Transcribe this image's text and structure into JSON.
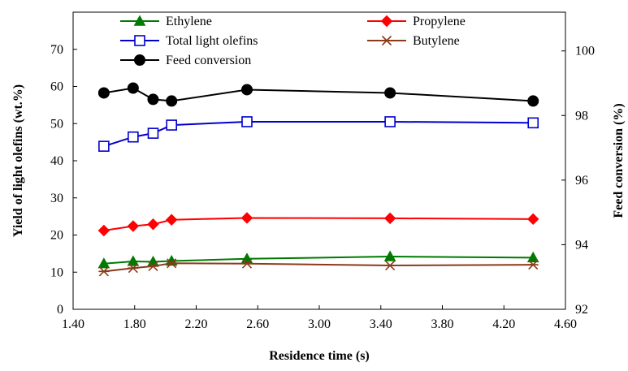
{
  "chart_data": {
    "type": "line",
    "xlabel": "Residence time (s)",
    "ylabel": "Yield of light olefins (wt.%)",
    "y2label": "Feed conversion (%)",
    "xlim": [
      1.4,
      4.6
    ],
    "ylim": [
      0,
      80
    ],
    "y2lim": [
      92,
      101.2
    ],
    "x_ticks": [
      "1.40",
      "1.80",
      "2.20",
      "2.60",
      "3.00",
      "3.40",
      "3.80",
      "4.20",
      "4.60"
    ],
    "y_ticks": [
      "0",
      "10",
      "20",
      "30",
      "40",
      "50",
      "60",
      "70"
    ],
    "y2_ticks": [
      "92",
      "94",
      "96",
      "98",
      "100"
    ],
    "grid": false,
    "legend_position": "top",
    "x": [
      1.6,
      1.79,
      1.92,
      2.04,
      2.53,
      3.46,
      4.39
    ],
    "series": [
      {
        "name": "Ethylene",
        "axis": "left",
        "color": "#007a00",
        "marker": "triangle-filled",
        "values": [
          12.3,
          12.9,
          12.8,
          13.0,
          13.6,
          14.2,
          13.9
        ]
      },
      {
        "name": "Propylene",
        "axis": "left",
        "color": "#ff0000",
        "marker": "diamond-filled",
        "values": [
          21.2,
          22.4,
          22.9,
          24.1,
          24.6,
          24.5,
          24.3
        ]
      },
      {
        "name": "Total light olefins",
        "axis": "left",
        "color": "#0000cc",
        "marker": "square-open",
        "values": [
          43.9,
          46.4,
          47.4,
          49.6,
          50.5,
          50.5,
          50.2
        ]
      },
      {
        "name": "Butylene",
        "axis": "left",
        "color": "#8b3a1a",
        "marker": "asterisk",
        "values": [
          10.2,
          11.1,
          11.6,
          12.4,
          12.3,
          11.8,
          12.0
        ]
      },
      {
        "name": "Feed conversion",
        "axis": "right",
        "color": "#000000",
        "marker": "circle-filled",
        "values": [
          98.7,
          98.85,
          98.5,
          98.45,
          98.8,
          98.7,
          98.45
        ]
      }
    ]
  }
}
